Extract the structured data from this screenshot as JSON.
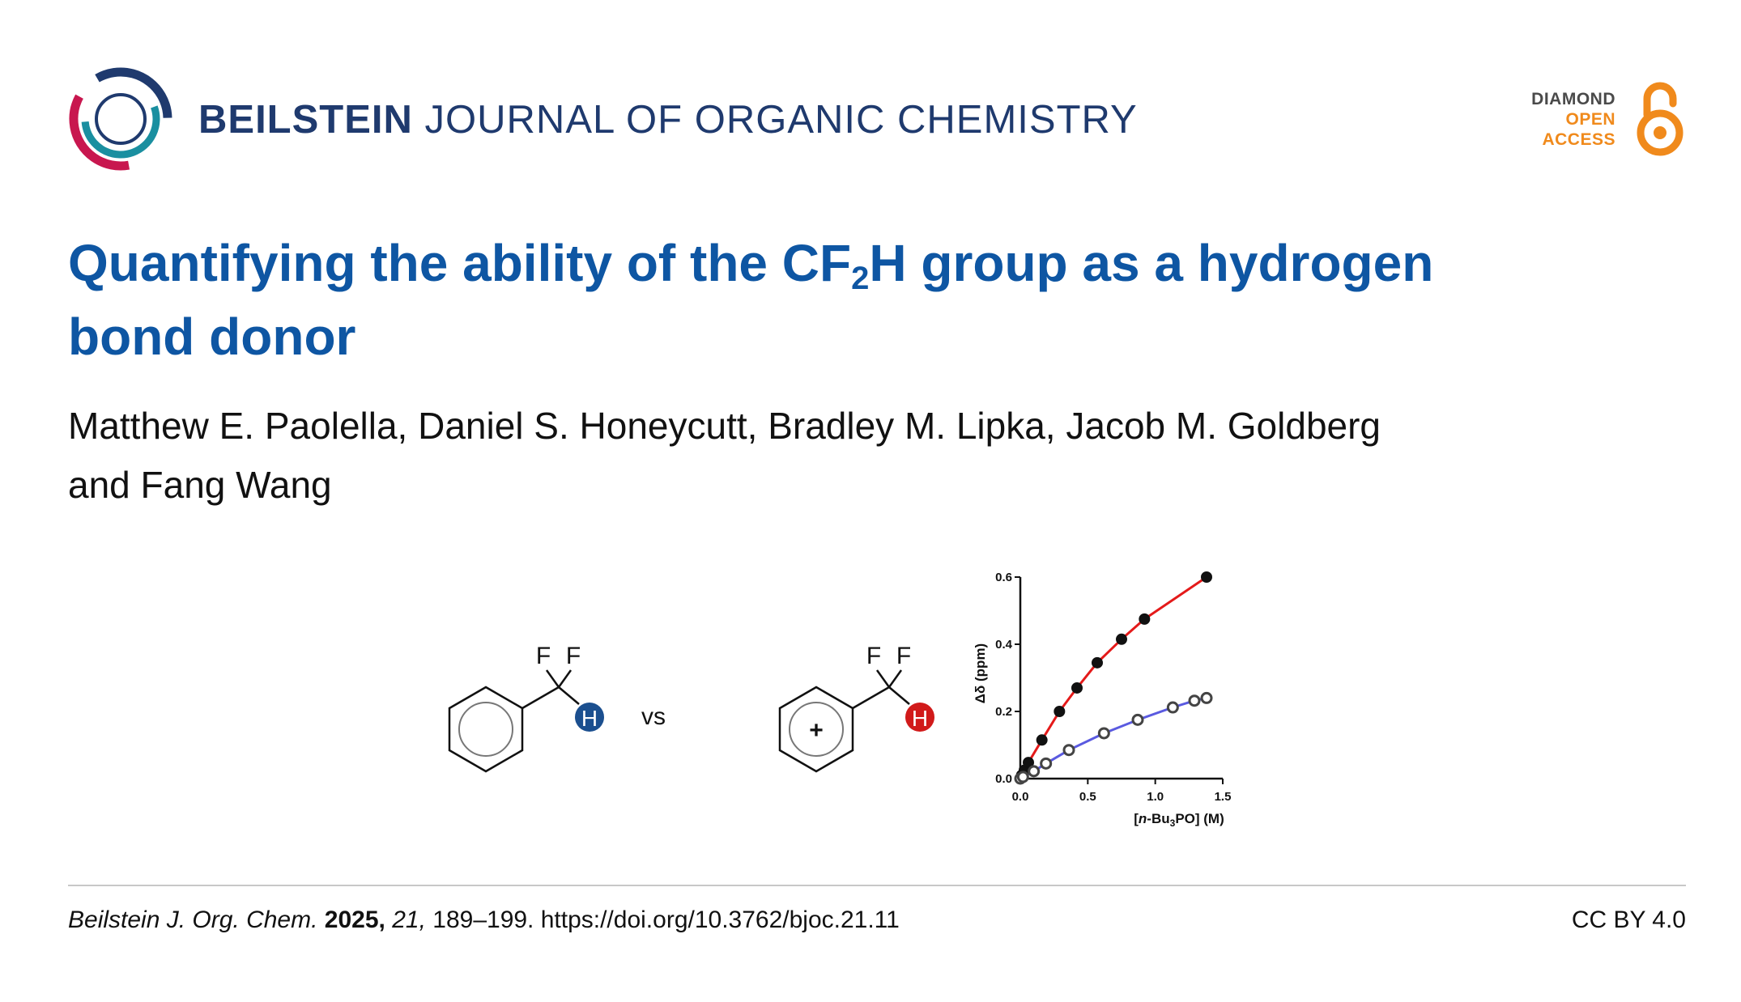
{
  "header": {
    "journal_bold": "BEILSTEIN",
    "journal_light": "JOURNAL OF ORGANIC CHEMISTRY",
    "badge": {
      "line1": "DIAMOND",
      "line2": "OPEN",
      "line3": "ACCESS"
    },
    "colors": {
      "navy": "#1f3a6e",
      "crimson": "#c8174f",
      "teal": "#1a8fa0",
      "orange": "#f08a1c"
    }
  },
  "article": {
    "title_part1": "Quantifying the ability of the CF",
    "title_sub": "2",
    "title_part2": "H group as a hydrogen bond donor",
    "authors_line1": "Matthew E. Paolella, Daniel S. Honeycutt, Bradley M. Lipka, Jacob M. Goldberg",
    "authors_line2": "and Fang Wang"
  },
  "graphic": {
    "molecule_left": {
      "atom_f1": "F",
      "atom_f2": "F",
      "atom_h": "H",
      "h_color": "#1b4f8f"
    },
    "vs_label": "vs",
    "molecule_right": {
      "atom_f1": "F",
      "atom_f2": "F",
      "atom_h": "H",
      "charge": "+",
      "h_color": "#d11a1a"
    }
  },
  "chart_data": {
    "type": "scatter",
    "xlabel_prefix": "[",
    "xlabel_italic": "n",
    "xlabel_mid": "-Bu",
    "xlabel_sub": "3",
    "xlabel_suffix": "PO] (M)",
    "ylabel": "Δδ (ppm)",
    "xlim": [
      0,
      1.5
    ],
    "ylim": [
      0,
      0.6
    ],
    "x_ticks": [
      "0.0",
      "0.5",
      "1.0",
      "1.5"
    ],
    "y_ticks": [
      "0.0",
      "0.2",
      "0.4",
      "0.6"
    ],
    "series": [
      {
        "marker": "filled-circle",
        "line_color": "#e41a1a",
        "x": [
          0.0,
          0.01,
          0.03,
          0.06,
          0.16,
          0.29,
          0.42,
          0.57,
          0.75,
          0.92,
          1.38
        ],
        "y": [
          0.0,
          0.01,
          0.025,
          0.048,
          0.115,
          0.2,
          0.27,
          0.345,
          0.415,
          0.475,
          0.6
        ]
      },
      {
        "marker": "open-circle",
        "line_color": "#5a5ae0",
        "x": [
          0.0,
          0.02,
          0.1,
          0.19,
          0.36,
          0.62,
          0.87,
          1.13,
          1.29,
          1.38
        ],
        "y": [
          0.0,
          0.005,
          0.022,
          0.045,
          0.085,
          0.135,
          0.175,
          0.212,
          0.232,
          0.24
        ]
      }
    ]
  },
  "footer": {
    "journal_abbr": "Beilstein J. Org. Chem.",
    "year": "2025,",
    "volume": "21,",
    "pages_doi": "189–199. https://doi.org/10.3762/bjoc.21.11",
    "license": "CC BY 4.0"
  }
}
